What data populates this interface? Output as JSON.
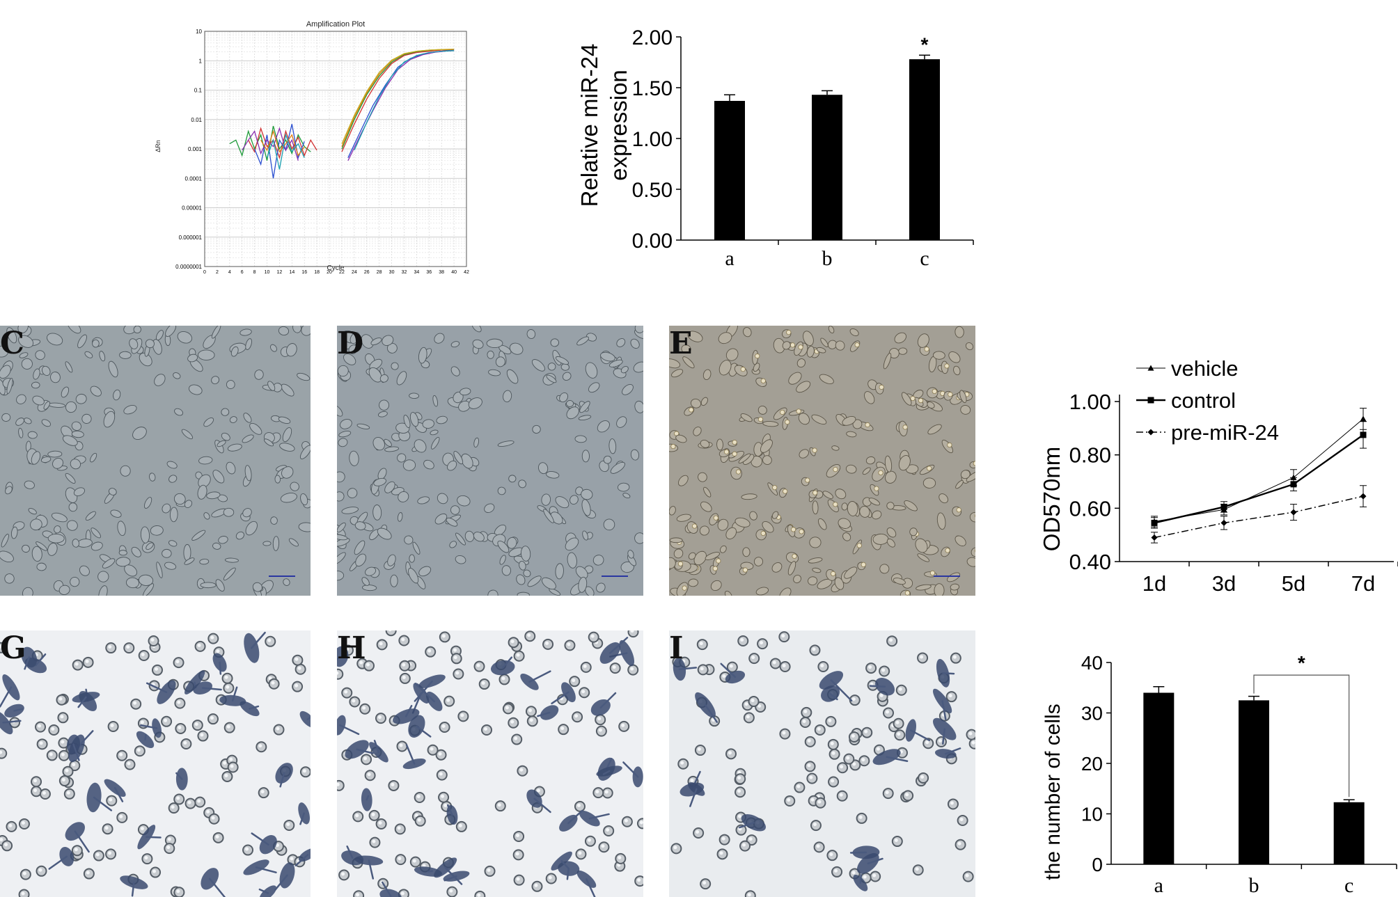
{
  "chart_data": [
    {
      "id": "amplification",
      "type": "line",
      "title": "Amplification Plot",
      "xlabel": "Cycle",
      "ylabel": "ΔRn",
      "xlim": [
        0,
        42
      ],
      "ylim": [
        1e-07,
        10
      ],
      "yscale": "log",
      "xticks": [
        "0",
        "2",
        "4",
        "6",
        "8",
        "10",
        "12",
        "14",
        "16",
        "18",
        "20",
        "22",
        "24",
        "26",
        "28",
        "30",
        "32",
        "34",
        "36",
        "38",
        "40",
        "42"
      ],
      "yticks": [
        "10",
        "1",
        "0.1",
        "0.01",
        "0.001",
        "0.0001",
        "0.00001",
        "0.000001",
        "0.0000001"
      ],
      "grid": true,
      "series": [
        {
          "color": "#1f9a3a",
          "x": [
            22,
            24,
            26,
            28,
            30,
            32,
            34,
            36,
            38,
            40
          ],
          "y": [
            0.001,
            0.01,
            0.07,
            0.3,
            0.9,
            1.6,
            2.0,
            2.2,
            2.35,
            2.4
          ]
        },
        {
          "color": "#d03030",
          "x": [
            22,
            24,
            26,
            28,
            30,
            32,
            34,
            36,
            38,
            40
          ],
          "y": [
            0.0008,
            0.007,
            0.05,
            0.25,
            0.8,
            1.5,
            1.9,
            2.1,
            2.3,
            2.35
          ]
        },
        {
          "color": "#2a4fd0",
          "x": [
            23,
            25,
            27,
            29,
            31,
            33,
            35,
            37,
            39,
            40
          ],
          "y": [
            0.0005,
            0.004,
            0.03,
            0.15,
            0.6,
            1.2,
            1.7,
            2.0,
            2.2,
            2.25
          ]
        },
        {
          "color": "#8a2db0",
          "x": [
            23,
            25,
            27,
            29,
            31,
            33,
            35,
            37,
            39,
            40
          ],
          "y": [
            0.0004,
            0.003,
            0.02,
            0.12,
            0.5,
            1.1,
            1.6,
            1.95,
            2.15,
            2.2
          ]
        },
        {
          "color": "#e07a10",
          "x": [
            22,
            24,
            26,
            28,
            30,
            32,
            34,
            36,
            38,
            40
          ],
          "y": [
            0.0012,
            0.012,
            0.08,
            0.35,
            1.0,
            1.7,
            2.1,
            2.3,
            2.4,
            2.45
          ]
        },
        {
          "color": "#1aa0b0",
          "x": [
            24,
            26,
            28,
            30,
            32,
            34,
            36,
            38,
            40
          ],
          "y": [
            0.0009,
            0.008,
            0.06,
            0.3,
            0.9,
            1.5,
            1.9,
            2.1,
            2.2
          ]
        },
        {
          "color": "#c0b020",
          "x": [
            22,
            24,
            26,
            28,
            30,
            32,
            34,
            36,
            38,
            40
          ],
          "y": [
            0.0015,
            0.014,
            0.09,
            0.4,
            1.05,
            1.75,
            2.1,
            2.3,
            2.4,
            2.45
          ]
        },
        {
          "color": "#1f9a3a",
          "x": [
            4,
            5,
            6,
            7,
            8,
            9,
            10,
            11,
            12,
            13,
            14,
            15,
            16,
            17
          ],
          "y": [
            0.0015,
            0.002,
            0.0006,
            0.004,
            0.001,
            0.003,
            0.0004,
            0.006,
            0.001,
            0.002,
            0.0007,
            0.003,
            0.0012,
            0.0008
          ]
        },
        {
          "color": "#d03030",
          "x": [
            7,
            8,
            9,
            10,
            11,
            12,
            13,
            14,
            15,
            16,
            17,
            18
          ],
          "y": [
            0.002,
            0.0008,
            0.005,
            0.0012,
            0.002,
            0.0005,
            0.004,
            0.001,
            0.0025,
            0.0006,
            0.002,
            0.0009
          ]
        },
        {
          "color": "#2a4fd0",
          "x": [
            8,
            9,
            10,
            11,
            12,
            13,
            14,
            15,
            16
          ],
          "y": [
            0.001,
            0.0003,
            0.003,
            0.0001,
            0.002,
            0.0009,
            0.007,
            0.0005,
            0.0018
          ]
        },
        {
          "color": "#8a2db0",
          "x": [
            6,
            7,
            8,
            9,
            10,
            11,
            12,
            13,
            14,
            15
          ],
          "y": [
            0.0009,
            0.002,
            0.004,
            0.0007,
            0.002,
            0.0012,
            0.005,
            0.0009,
            0.002,
            0.0004
          ]
        },
        {
          "color": "#e07a10",
          "x": [
            9,
            10,
            11,
            12,
            13,
            14,
            15,
            16
          ],
          "y": [
            0.002,
            0.0009,
            0.004,
            0.0008,
            0.0015,
            0.003,
            0.0006,
            0.0012
          ]
        },
        {
          "color": "#1aa0b0",
          "x": [
            10,
            11,
            12,
            13,
            14,
            15,
            16
          ],
          "y": [
            0.0005,
            0.002,
            0.0002,
            0.003,
            0.0008,
            0.0015,
            0.0005
          ]
        }
      ]
    },
    {
      "id": "mir24-expression",
      "type": "bar",
      "categories": [
        "a",
        "b",
        "c"
      ],
      "values": [
        1.37,
        1.43,
        1.78
      ],
      "errors": [
        0.06,
        0.04,
        0.04
      ],
      "ylabel": "Relative miR-24 expression",
      "ylabel_lines": [
        "Relative miR-24",
        "expression"
      ],
      "ylim": [
        0,
        2
      ],
      "yticks": [
        "0.00",
        "0.50",
        "1.00",
        "1.50",
        "2.00"
      ],
      "significance": [
        "",
        "",
        "*"
      ]
    },
    {
      "id": "od570",
      "type": "line",
      "categories": [
        "1d",
        "3d",
        "5d",
        "7d"
      ],
      "ylabel": "OD570nm",
      "ylim": [
        0.4,
        1.0
      ],
      "yticks": [
        "0.40",
        "0.60",
        "0.80",
        "1.00"
      ],
      "legend_position": "top-left",
      "series": [
        {
          "name": "vehicle",
          "marker": "triangle",
          "values": [
            0.55,
            0.595,
            0.715,
            0.935
          ],
          "errors": [
            0.02,
            0.02,
            0.03,
            0.04
          ]
        },
        {
          "name": "control",
          "marker": "square",
          "values": [
            0.545,
            0.605,
            0.69,
            0.875
          ],
          "errors": [
            0.02,
            0.02,
            0.025,
            0.05
          ]
        },
        {
          "name": "pre-miR-24",
          "marker": "diamond",
          "values": [
            0.49,
            0.545,
            0.585,
            0.645
          ],
          "errors": [
            0.02,
            0.025,
            0.03,
            0.04
          ]
        }
      ]
    },
    {
      "id": "cell-count",
      "type": "bar",
      "categories": [
        "a",
        "b",
        "c"
      ],
      "values": [
        34,
        32.5,
        12.3
      ],
      "errors": [
        1.2,
        0.8,
        0.5
      ],
      "ylabel": "the number of cells",
      "ylim": [
        0,
        40
      ],
      "yticks": [
        "0",
        "10",
        "20",
        "30",
        "40"
      ],
      "significance_bracket": {
        "from": "b",
        "to": "c",
        "label": "*"
      }
    }
  ],
  "micrographs": [
    {
      "letter": "C",
      "tone": "#9aa3a8",
      "style": "phase"
    },
    {
      "letter": "D",
      "tone": "#98a1a8",
      "style": "phase"
    },
    {
      "letter": "E",
      "tone": "#a39f95",
      "style": "phase"
    },
    {
      "letter": "G",
      "tone": "#eef0f3",
      "style": "stain"
    },
    {
      "letter": "H",
      "tone": "#eef0f3",
      "style": "stain"
    },
    {
      "letter": "I",
      "tone": "#e9ecef",
      "style": "stain"
    }
  ]
}
